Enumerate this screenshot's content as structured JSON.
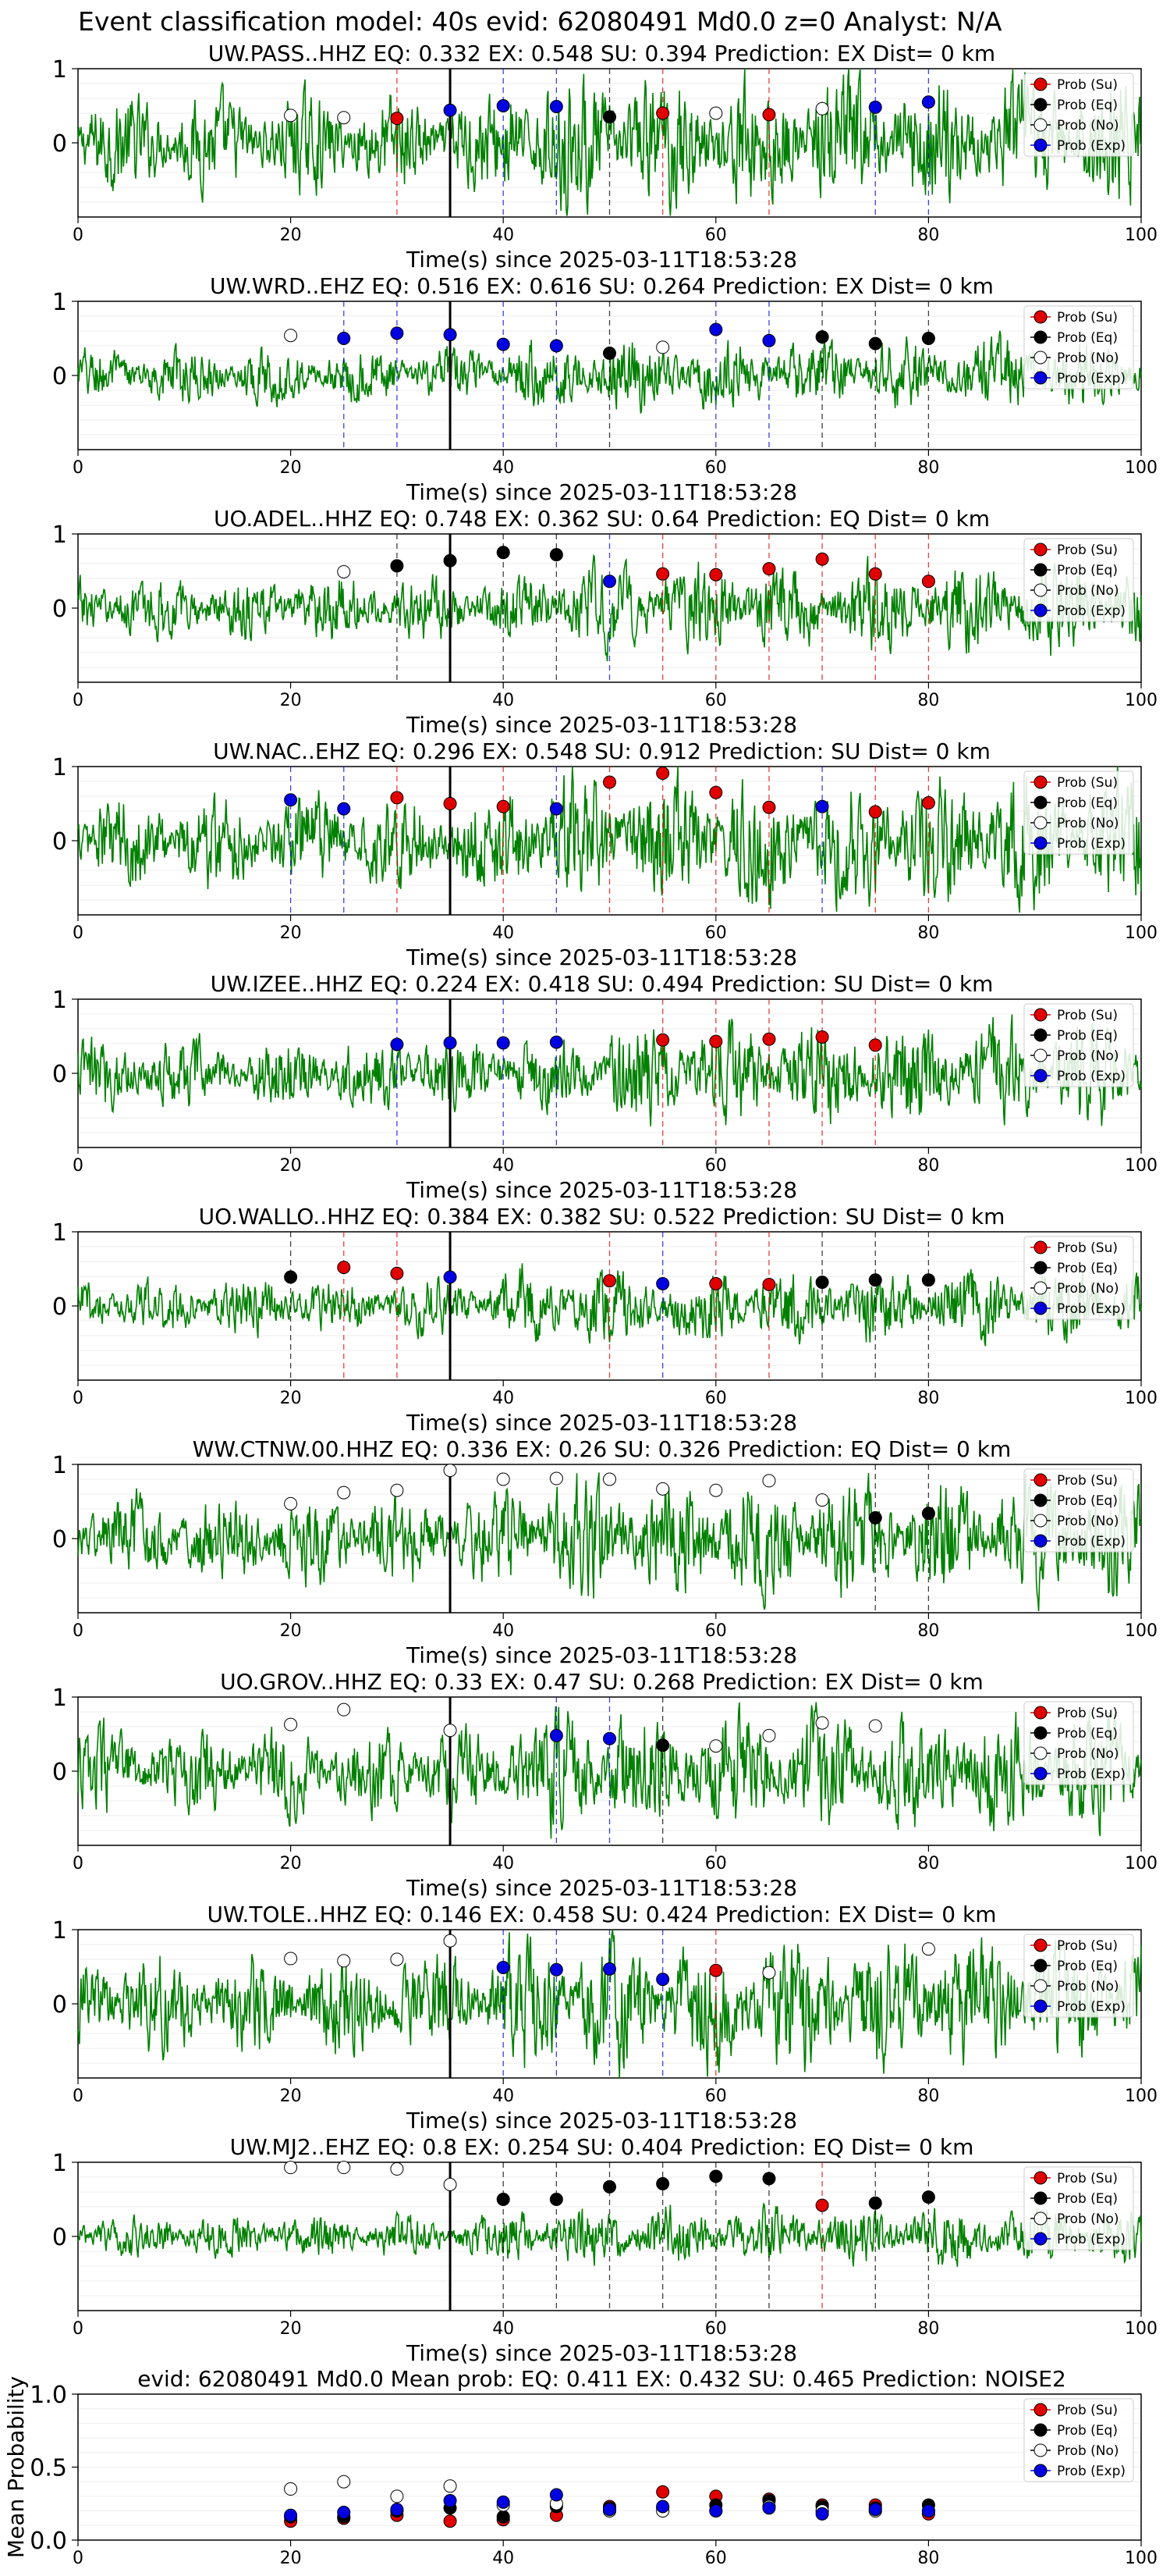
{
  "suptitle": "Event classification model: 40s evid: 62080491 Md0.0 z=0 Analyst: N/A",
  "colors": {
    "trace": "#008000",
    "Su": "#e00000",
    "Eq": "#000000",
    "No": "#ffffff",
    "Exp": "#0000e0",
    "picks": "#000000"
  },
  "legend_labels": [
    "Prob (Su)",
    "Prob (Eq)",
    "Prob (No)",
    "Prob (Exp)"
  ],
  "legend_placement": "top-right",
  "shared_xlabel": "Time(s) since 2025-03-11T18:53:28",
  "p_pick_time": 35,
  "chart_data": [
    {
      "type": "line",
      "title": "UW.PASS..HHZ   EQ: 0.332  EX: 0.548  SU: 0.394   Prediction: EX    Dist= 0 km",
      "xlabel": "Time(s) since 2025-03-11T18:53:28",
      "xlim": [
        0,
        100
      ],
      "ylim": [
        -1,
        1
      ],
      "xticks": [
        0,
        20,
        40,
        60,
        80,
        100
      ],
      "yticks": [
        0,
        1
      ],
      "amplitude": 0.9,
      "points": [
        {
          "t": 20,
          "c": "No",
          "p": 0.37
        },
        {
          "t": 25,
          "c": "No",
          "p": 0.34
        },
        {
          "t": 30,
          "c": "Su",
          "p": 0.33
        },
        {
          "t": 35,
          "c": "Exp",
          "p": 0.44
        },
        {
          "t": 40,
          "c": "Exp",
          "p": 0.5
        },
        {
          "t": 45,
          "c": "Exp",
          "p": 0.49
        },
        {
          "t": 50,
          "c": "Eq",
          "p": 0.35
        },
        {
          "t": 55,
          "c": "Su",
          "p": 0.4
        },
        {
          "t": 60,
          "c": "No",
          "p": 0.4
        },
        {
          "t": 65,
          "c": "Su",
          "p": 0.38
        },
        {
          "t": 70,
          "c": "No",
          "p": 0.46
        },
        {
          "t": 75,
          "c": "Exp",
          "p": 0.48
        },
        {
          "t": 80,
          "c": "Exp",
          "p": 0.55
        }
      ]
    },
    {
      "type": "line",
      "title": "UW.WRD..EHZ   EQ: 0.516  EX: 0.616  SU: 0.264   Prediction: EX    Dist= 0 km",
      "xlabel": "Time(s) since 2025-03-11T18:53:28",
      "xlim": [
        0,
        100
      ],
      "ylim": [
        -1,
        1
      ],
      "xticks": [
        0,
        20,
        40,
        60,
        80,
        100
      ],
      "yticks": [
        0,
        1
      ],
      "amplitude": 0.5,
      "points": [
        {
          "t": 20,
          "c": "No",
          "p": 0.54
        },
        {
          "t": 25,
          "c": "Exp",
          "p": 0.5
        },
        {
          "t": 30,
          "c": "Exp",
          "p": 0.57
        },
        {
          "t": 35,
          "c": "Exp",
          "p": 0.55
        },
        {
          "t": 40,
          "c": "Exp",
          "p": 0.42
        },
        {
          "t": 45,
          "c": "Exp",
          "p": 0.4
        },
        {
          "t": 50,
          "c": "Eq",
          "p": 0.3
        },
        {
          "t": 55,
          "c": "No",
          "p": 0.38
        },
        {
          "t": 60,
          "c": "Exp",
          "p": 0.62
        },
        {
          "t": 65,
          "c": "Exp",
          "p": 0.47
        },
        {
          "t": 70,
          "c": "Eq",
          "p": 0.52
        },
        {
          "t": 75,
          "c": "Eq",
          "p": 0.43
        },
        {
          "t": 80,
          "c": "Eq",
          "p": 0.5
        }
      ]
    },
    {
      "type": "line",
      "title": "UO.ADEL..HHZ   EQ: 0.748  EX: 0.362  SU: 0.64   Prediction: EQ    Dist= 0 km",
      "xlabel": "Time(s) since 2025-03-11T18:53:28",
      "xlim": [
        0,
        100
      ],
      "ylim": [
        -1,
        1
      ],
      "xticks": [
        0,
        20,
        40,
        60,
        80,
        100
      ],
      "yticks": [
        0,
        1
      ],
      "amplitude": 0.6,
      "points": [
        {
          "t": 25,
          "c": "No",
          "p": 0.49
        },
        {
          "t": 30,
          "c": "Eq",
          "p": 0.57
        },
        {
          "t": 35,
          "c": "Eq",
          "p": 0.64
        },
        {
          "t": 40,
          "c": "Eq",
          "p": 0.75
        },
        {
          "t": 45,
          "c": "Eq",
          "p": 0.72
        },
        {
          "t": 50,
          "c": "Exp",
          "p": 0.36
        },
        {
          "t": 55,
          "c": "Su",
          "p": 0.46
        },
        {
          "t": 60,
          "c": "Su",
          "p": 0.45
        },
        {
          "t": 65,
          "c": "Su",
          "p": 0.53
        },
        {
          "t": 70,
          "c": "Su",
          "p": 0.66
        },
        {
          "t": 75,
          "c": "Su",
          "p": 0.46
        },
        {
          "t": 80,
          "c": "Su",
          "p": 0.36
        }
      ]
    },
    {
      "type": "line",
      "title": "UW.NAC..EHZ   EQ: 0.296  EX: 0.548  SU: 0.912   Prediction: SU    Dist= 0 km",
      "xlabel": "Time(s) since 2025-03-11T18:53:28",
      "xlim": [
        0,
        100
      ],
      "ylim": [
        -1,
        1
      ],
      "xticks": [
        0,
        20,
        40,
        60,
        80,
        100
      ],
      "yticks": [
        0,
        1
      ],
      "amplitude": 0.9,
      "points": [
        {
          "t": 20,
          "c": "Exp",
          "p": 0.55
        },
        {
          "t": 25,
          "c": "Exp",
          "p": 0.43
        },
        {
          "t": 30,
          "c": "Su",
          "p": 0.58
        },
        {
          "t": 35,
          "c": "Su",
          "p": 0.5
        },
        {
          "t": 40,
          "c": "Su",
          "p": 0.46
        },
        {
          "t": 45,
          "c": "Exp",
          "p": 0.43
        },
        {
          "t": 50,
          "c": "Su",
          "p": 0.79
        },
        {
          "t": 55,
          "c": "Su",
          "p": 0.91
        },
        {
          "t": 60,
          "c": "Su",
          "p": 0.65
        },
        {
          "t": 65,
          "c": "Su",
          "p": 0.45
        },
        {
          "t": 70,
          "c": "Exp",
          "p": 0.46
        },
        {
          "t": 75,
          "c": "Su",
          "p": 0.39
        },
        {
          "t": 80,
          "c": "Su",
          "p": 0.51
        }
      ]
    },
    {
      "type": "line",
      "title": "UW.IZEE..HHZ   EQ: 0.224  EX: 0.418  SU: 0.494   Prediction: SU    Dist= 0 km",
      "xlabel": "Time(s) since 2025-03-11T18:53:28",
      "xlim": [
        0,
        100
      ],
      "ylim": [
        -1,
        1
      ],
      "xticks": [
        0,
        20,
        40,
        60,
        80,
        100
      ],
      "yticks": [
        0,
        1
      ],
      "amplitude": 0.7,
      "points": [
        {
          "t": 30,
          "c": "Exp",
          "p": 0.39
        },
        {
          "t": 35,
          "c": "Exp",
          "p": 0.41
        },
        {
          "t": 40,
          "c": "Exp",
          "p": 0.41
        },
        {
          "t": 45,
          "c": "Exp",
          "p": 0.42
        },
        {
          "t": 55,
          "c": "Su",
          "p": 0.45
        },
        {
          "t": 60,
          "c": "Su",
          "p": 0.43
        },
        {
          "t": 65,
          "c": "Su",
          "p": 0.46
        },
        {
          "t": 70,
          "c": "Su",
          "p": 0.49
        },
        {
          "t": 75,
          "c": "Su",
          "p": 0.38
        }
      ]
    },
    {
      "type": "line",
      "title": "UO.WALLO..HHZ   EQ: 0.384  EX: 0.382  SU: 0.522   Prediction: SU    Dist= 0 km",
      "xlabel": "Time(s) since 2025-03-11T18:53:28",
      "xlim": [
        0,
        100
      ],
      "ylim": [
        -1,
        1
      ],
      "xticks": [
        0,
        20,
        40,
        60,
        80,
        100
      ],
      "yticks": [
        0,
        1
      ],
      "amplitude": 0.5,
      "points": [
        {
          "t": 20,
          "c": "Eq",
          "p": 0.39
        },
        {
          "t": 25,
          "c": "Su",
          "p": 0.52
        },
        {
          "t": 30,
          "c": "Su",
          "p": 0.44
        },
        {
          "t": 35,
          "c": "Exp",
          "p": 0.39
        },
        {
          "t": 50,
          "c": "Su",
          "p": 0.34
        },
        {
          "t": 55,
          "c": "Exp",
          "p": 0.3
        },
        {
          "t": 60,
          "c": "Su",
          "p": 0.3
        },
        {
          "t": 65,
          "c": "Su",
          "p": 0.29
        },
        {
          "t": 70,
          "c": "Eq",
          "p": 0.32
        },
        {
          "t": 75,
          "c": "Eq",
          "p": 0.35
        },
        {
          "t": 80,
          "c": "Eq",
          "p": 0.35
        }
      ]
    },
    {
      "type": "line",
      "title": "WW.CTNW.00.HHZ   EQ: 0.336  EX: 0.26  SU: 0.326   Prediction: EQ    Dist= 0 km",
      "xlabel": "Time(s) since 2025-03-11T18:53:28",
      "xlim": [
        0,
        100
      ],
      "ylim": [
        -1,
        1
      ],
      "xticks": [
        0,
        20,
        40,
        60,
        80,
        100
      ],
      "yticks": [
        0,
        1
      ],
      "amplitude": 0.8,
      "points": [
        {
          "t": 20,
          "c": "No",
          "p": 0.47
        },
        {
          "t": 25,
          "c": "No",
          "p": 0.62
        },
        {
          "t": 30,
          "c": "No",
          "p": 0.65
        },
        {
          "t": 35,
          "c": "No",
          "p": 0.92
        },
        {
          "t": 40,
          "c": "No",
          "p": 0.8
        },
        {
          "t": 45,
          "c": "No",
          "p": 0.81
        },
        {
          "t": 50,
          "c": "No",
          "p": 0.8
        },
        {
          "t": 55,
          "c": "No",
          "p": 0.67
        },
        {
          "t": 60,
          "c": "No",
          "p": 0.65
        },
        {
          "t": 65,
          "c": "No",
          "p": 0.78
        },
        {
          "t": 70,
          "c": "No",
          "p": 0.52
        },
        {
          "t": 75,
          "c": "Eq",
          "p": 0.28
        },
        {
          "t": 80,
          "c": "Eq",
          "p": 0.34
        }
      ]
    },
    {
      "type": "line",
      "title": "UO.GROV..HHZ   EQ: 0.33  EX: 0.47  SU: 0.268   Prediction: EX    Dist= 0 km",
      "xlabel": "Time(s) since 2025-03-11T18:53:28",
      "xlim": [
        0,
        100
      ],
      "ylim": [
        -1,
        1
      ],
      "xticks": [
        0,
        20,
        40,
        60,
        80,
        100
      ],
      "yticks": [
        0,
        1
      ],
      "amplitude": 0.8,
      "points": [
        {
          "t": 20,
          "c": "No",
          "p": 0.63
        },
        {
          "t": 25,
          "c": "No",
          "p": 0.83
        },
        {
          "t": 35,
          "c": "No",
          "p": 0.55
        },
        {
          "t": 45,
          "c": "Exp",
          "p": 0.48
        },
        {
          "t": 50,
          "c": "Exp",
          "p": 0.44
        },
        {
          "t": 55,
          "c": "Eq",
          "p": 0.35
        },
        {
          "t": 60,
          "c": "No",
          "p": 0.34
        },
        {
          "t": 65,
          "c": "No",
          "p": 0.48
        },
        {
          "t": 70,
          "c": "No",
          "p": 0.65
        },
        {
          "t": 75,
          "c": "No",
          "p": 0.61
        }
      ]
    },
    {
      "type": "line",
      "title": "UW.TOLE..HHZ   EQ: 0.146  EX: 0.458  SU: 0.424   Prediction: EX    Dist= 0 km",
      "xlabel": "Time(s) since 2025-03-11T18:53:28",
      "xlim": [
        0,
        100
      ],
      "ylim": [
        -1,
        1
      ],
      "xticks": [
        0,
        20,
        40,
        60,
        80,
        100
      ],
      "yticks": [
        0,
        1
      ],
      "amplitude": 0.9,
      "points": [
        {
          "t": 20,
          "c": "No",
          "p": 0.61
        },
        {
          "t": 25,
          "c": "No",
          "p": 0.58
        },
        {
          "t": 30,
          "c": "No",
          "p": 0.6
        },
        {
          "t": 35,
          "c": "No",
          "p": 0.85
        },
        {
          "t": 40,
          "c": "Exp",
          "p": 0.49
        },
        {
          "t": 45,
          "c": "Exp",
          "p": 0.46
        },
        {
          "t": 50,
          "c": "Exp",
          "p": 0.47
        },
        {
          "t": 55,
          "c": "Exp",
          "p": 0.33
        },
        {
          "t": 60,
          "c": "Su",
          "p": 0.45
        },
        {
          "t": 65,
          "c": "No",
          "p": 0.42
        },
        {
          "t": 80,
          "c": "No",
          "p": 0.74
        }
      ]
    },
    {
      "type": "line",
      "title": "UW.MJ2..EHZ   EQ: 0.8  EX: 0.254  SU: 0.404   Prediction: EQ    Dist= 0 km",
      "xlabel": "Time(s) since 2025-03-11T18:53:28",
      "xlim": [
        0,
        100
      ],
      "ylim": [
        -1,
        1
      ],
      "xticks": [
        0,
        20,
        40,
        60,
        80,
        100
      ],
      "yticks": [
        0,
        1
      ],
      "amplitude": 0.4,
      "points": [
        {
          "t": 20,
          "c": "No",
          "p": 0.93
        },
        {
          "t": 25,
          "c": "No",
          "p": 0.93
        },
        {
          "t": 30,
          "c": "No",
          "p": 0.91
        },
        {
          "t": 35,
          "c": "No",
          "p": 0.7
        },
        {
          "t": 40,
          "c": "Eq",
          "p": 0.5
        },
        {
          "t": 45,
          "c": "Eq",
          "p": 0.5
        },
        {
          "t": 50,
          "c": "Eq",
          "p": 0.67
        },
        {
          "t": 55,
          "c": "Eq",
          "p": 0.71
        },
        {
          "t": 60,
          "c": "Eq",
          "p": 0.81
        },
        {
          "t": 65,
          "c": "Eq",
          "p": 0.78
        },
        {
          "t": 70,
          "c": "Su",
          "p": 0.42
        },
        {
          "t": 75,
          "c": "Eq",
          "p": 0.45
        },
        {
          "t": 80,
          "c": "Eq",
          "p": 0.53
        }
      ]
    },
    {
      "type": "scatter",
      "title": "evid: 62080491  Md0.0   Mean prob:   EQ: 0.411  EX: 0.432  SU: 0.465   Prediction: NOISE2",
      "ylabel": "Mean Probability",
      "xlim": [
        0,
        100
      ],
      "ylim": [
        0,
        1
      ],
      "xticks": [
        0,
        20,
        40,
        60,
        80,
        100
      ],
      "yticks": [
        0.0,
        0.5,
        1.0
      ],
      "series": [
        {
          "name": "Prob (Su)",
          "c": "Su",
          "x": [
            20,
            25,
            30,
            35,
            40,
            45,
            50,
            55,
            60,
            65,
            70,
            75,
            80
          ],
          "y": [
            0.13,
            0.15,
            0.17,
            0.13,
            0.14,
            0.17,
            0.23,
            0.33,
            0.3,
            0.28,
            0.24,
            0.24,
            0.18
          ]
        },
        {
          "name": "Prob (Eq)",
          "c": "Eq",
          "x": [
            20,
            25,
            30,
            35,
            40,
            45,
            50,
            55,
            60,
            65,
            70,
            75,
            80
          ],
          "y": [
            0.16,
            0.16,
            0.2,
            0.22,
            0.16,
            0.23,
            0.22,
            0.22,
            0.24,
            0.27,
            0.23,
            0.22,
            0.24
          ]
        },
        {
          "name": "Prob (No)",
          "c": "No",
          "x": [
            20,
            25,
            30,
            35,
            40,
            45,
            50,
            55,
            60,
            65,
            70,
            75,
            80
          ],
          "y": [
            0.35,
            0.4,
            0.3,
            0.37,
            0.24,
            0.25,
            0.2,
            0.2,
            0.2,
            0.23,
            0.2,
            0.2,
            0.2
          ]
        },
        {
          "name": "Prob (Exp)",
          "c": "Exp",
          "x": [
            20,
            25,
            30,
            35,
            40,
            45,
            50,
            55,
            60,
            65,
            70,
            75,
            80
          ],
          "y": [
            0.17,
            0.19,
            0.21,
            0.27,
            0.26,
            0.31,
            0.21,
            0.23,
            0.2,
            0.22,
            0.18,
            0.21,
            0.2
          ]
        }
      ]
    }
  ]
}
